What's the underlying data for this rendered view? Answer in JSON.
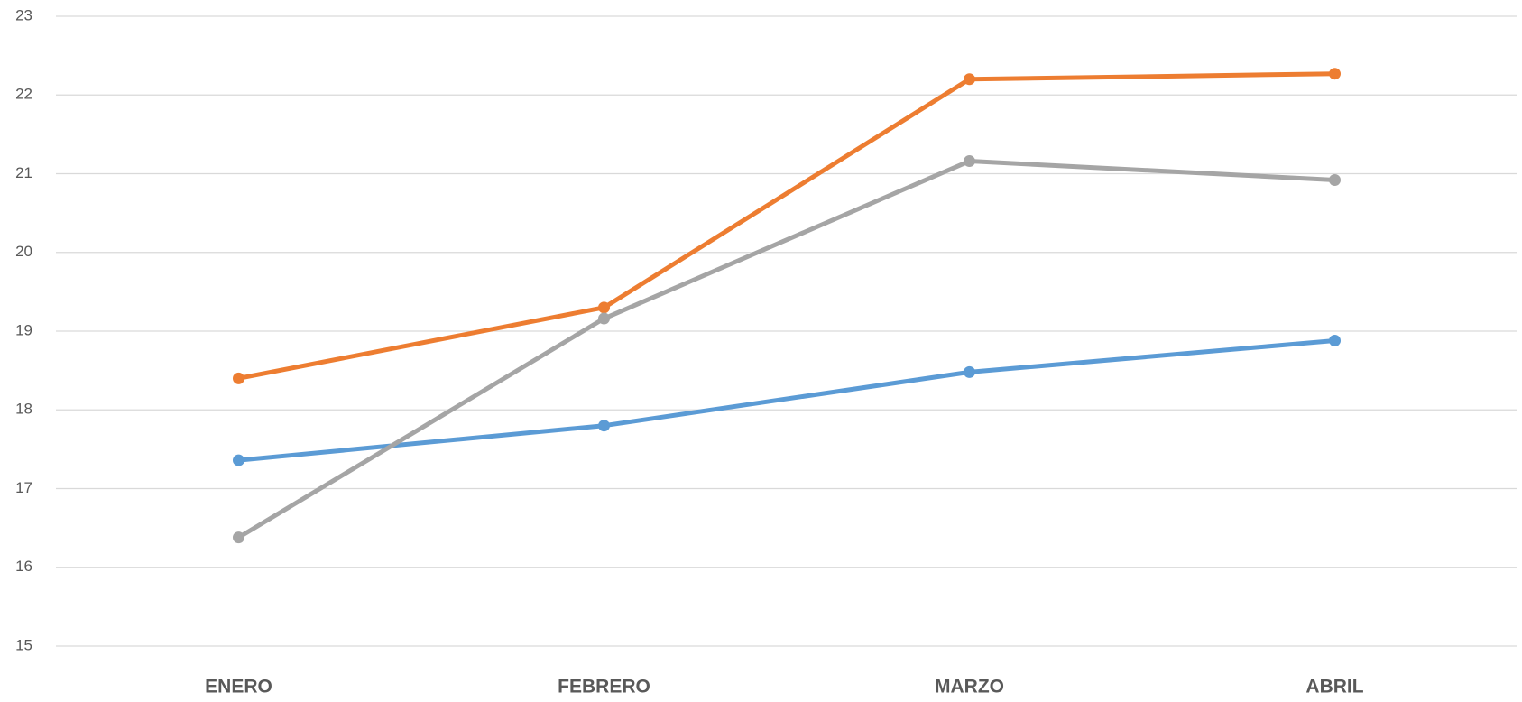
{
  "chart_data": {
    "type": "line",
    "categories": [
      "ENERO",
      "FEBRERO",
      "MARZO",
      "ABRIL"
    ],
    "series": [
      {
        "color": "#5b9bd5",
        "values": [
          17.36,
          17.8,
          18.48,
          18.88
        ]
      },
      {
        "color": "#ed7d31",
        "values": [
          18.4,
          19.3,
          22.2,
          22.27
        ]
      },
      {
        "color": "#a5a5a5",
        "values": [
          16.38,
          19.16,
          21.16,
          20.92
        ]
      }
    ],
    "ylim": [
      15,
      23
    ],
    "yticks": [
      15,
      16,
      17,
      18,
      19,
      20,
      21,
      22,
      23
    ],
    "grid": true
  }
}
